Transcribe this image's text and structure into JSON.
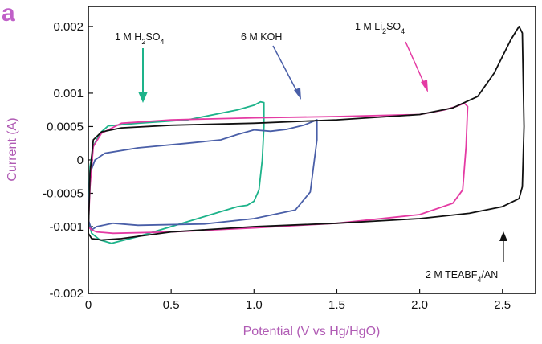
{
  "chart_data": {
    "type": "line",
    "panel_label": "a",
    "xlabel": "Potential (V vs Hg/HgO)",
    "ylabel": "Current (A)",
    "xlim": [
      0,
      2.7
    ],
    "ylim": [
      -0.002,
      0.0023
    ],
    "x_ticks": [
      0,
      0.5,
      1.0,
      1.5,
      2.0,
      2.5
    ],
    "x_tick_labels": [
      "0",
      "0.5",
      "1.0",
      "1.5",
      "2.0",
      "2.5"
    ],
    "y_ticks": [
      -0.002,
      -0.001,
      -0.0005,
      0,
      0.0005,
      0.001,
      0.002
    ],
    "y_tick_labels": [
      "-0.002",
      "-0.001",
      "-0.0005",
      "0",
      "0.0005",
      "0.001",
      "0.002"
    ],
    "grid": false,
    "series": [
      {
        "name": "1 M H2SO4",
        "label_main": "1 M H",
        "label_sub1": "2",
        "label_mid": "SO",
        "label_sub2": "4",
        "color": "#1db38a",
        "x": [
          0.0,
          0.01,
          0.03,
          0.07,
          0.12,
          0.3,
          0.6,
          0.9,
          1.0,
          1.04,
          1.06,
          1.06,
          1.05,
          1.03,
          1.0,
          0.96,
          0.9,
          0.7,
          0.5,
          0.3,
          0.14,
          0.07,
          0.02,
          0.0
        ],
        "y": [
          -0.0009,
          -0.0001,
          0.0002,
          0.0004,
          0.00051,
          0.00055,
          0.0006,
          0.00075,
          0.00082,
          0.00087,
          0.00086,
          0.0005,
          0.0,
          -0.00045,
          -0.00062,
          -0.00068,
          -0.0007,
          -0.00085,
          -0.001,
          -0.00115,
          -0.00125,
          -0.0012,
          -0.0011,
          -0.0009
        ]
      },
      {
        "name": "6 M KOH",
        "label_main": "6 M KOH",
        "color": "#4a5fa8",
        "x": [
          0.0,
          0.01,
          0.04,
          0.1,
          0.3,
          0.6,
          0.8,
          0.9,
          1.0,
          1.1,
          1.2,
          1.3,
          1.36,
          1.38,
          1.38,
          1.34,
          1.25,
          1.0,
          0.7,
          0.3,
          0.15,
          0.05,
          0.02,
          0.0
        ],
        "y": [
          -0.0009,
          -0.0002,
          0.0,
          0.0001,
          0.00018,
          0.00025,
          0.0003,
          0.00038,
          0.00045,
          0.00043,
          0.00046,
          0.00052,
          0.00058,
          0.0006,
          0.0003,
          -0.00048,
          -0.00075,
          -0.00088,
          -0.00096,
          -0.00098,
          -0.00095,
          -0.001,
          -0.00105,
          -0.0009
        ]
      },
      {
        "name": "1 M Li2SO4",
        "label_main": "1 M Li",
        "label_sub1": "2",
        "label_mid": "SO",
        "label_sub2": "4",
        "color": "#e43aa3",
        "x": [
          0.0,
          0.01,
          0.03,
          0.08,
          0.2,
          0.5,
          1.0,
          1.5,
          2.0,
          2.15,
          2.22,
          2.27,
          2.29,
          2.28,
          2.26,
          2.2,
          2.0,
          1.5,
          1.0,
          0.5,
          0.15,
          0.05,
          0.02,
          0.0
        ],
        "y": [
          -0.001,
          -0.0004,
          0.0002,
          0.0004,
          0.00055,
          0.0006,
          0.00063,
          0.00065,
          0.00068,
          0.00075,
          0.0008,
          0.00085,
          0.0008,
          0.0002,
          -0.00045,
          -0.00065,
          -0.00082,
          -0.00095,
          -0.00102,
          -0.00108,
          -0.0011,
          -0.00108,
          -0.00105,
          -0.001
        ]
      },
      {
        "name": "2 M TEABF4/AN",
        "label_main": "2 M TEABF",
        "label_sub1": "4",
        "label_mid": "/AN",
        "color": "#111111",
        "x": [
          0.0,
          0.01,
          0.03,
          0.08,
          0.2,
          0.5,
          1.0,
          1.5,
          2.0,
          2.2,
          2.35,
          2.45,
          2.55,
          2.6,
          2.62,
          2.63,
          2.62,
          2.6,
          2.5,
          2.3,
          2.0,
          1.5,
          1.0,
          0.5,
          0.2,
          0.08,
          0.02,
          0.0
        ],
        "y": [
          -0.0011,
          -0.0002,
          0.0003,
          0.00042,
          0.00048,
          0.00052,
          0.00055,
          0.0006,
          0.00068,
          0.00078,
          0.00095,
          0.0013,
          0.0018,
          0.002,
          0.0019,
          0.0005,
          -0.0004,
          -0.00058,
          -0.0007,
          -0.0008,
          -0.00088,
          -0.00095,
          -0.001,
          -0.00108,
          -0.00118,
          -0.0012,
          -0.00118,
          -0.0011
        ]
      }
    ]
  }
}
